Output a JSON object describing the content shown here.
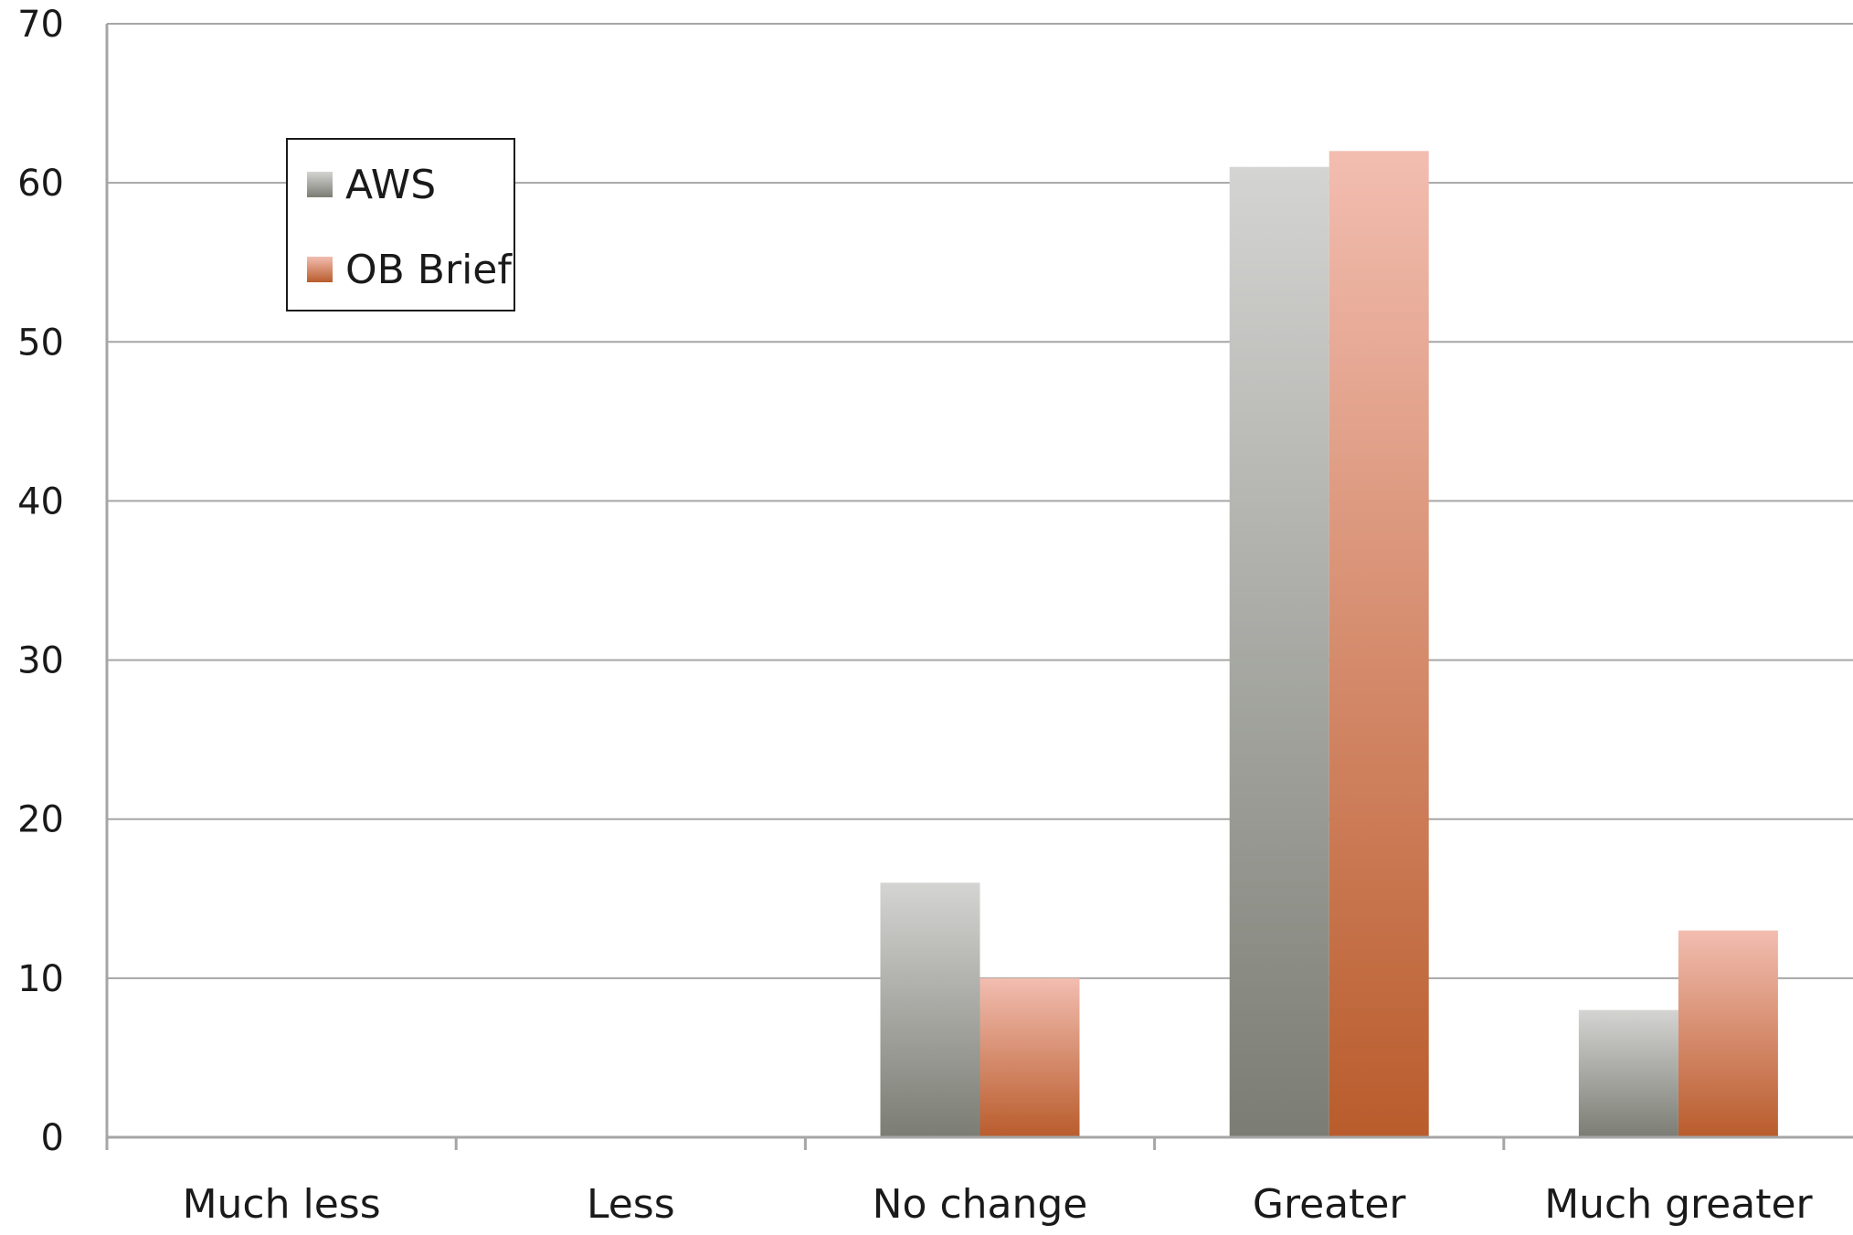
{
  "chart_data": {
    "type": "bar",
    "title": "",
    "xlabel": "",
    "ylabel": "",
    "categories": [
      "Much less",
      "Less",
      "No change",
      "Greater",
      "Much greater"
    ],
    "series": [
      {
        "name": "AWS",
        "values": [
          0,
          0,
          16,
          61,
          8
        ],
        "color_top": "#d4d4d2",
        "color_bottom": "#7b7d74"
      },
      {
        "name": "OB Brief",
        "values": [
          0,
          0,
          10,
          62,
          13
        ],
        "color_top": "#f2bdb0",
        "color_bottom": "#b95c2c"
      }
    ],
    "ylim": [
      0,
      70
    ],
    "yticks": [
      0,
      10,
      20,
      30,
      40,
      50,
      60,
      70
    ],
    "grid": true,
    "legend_position": "top-left"
  }
}
